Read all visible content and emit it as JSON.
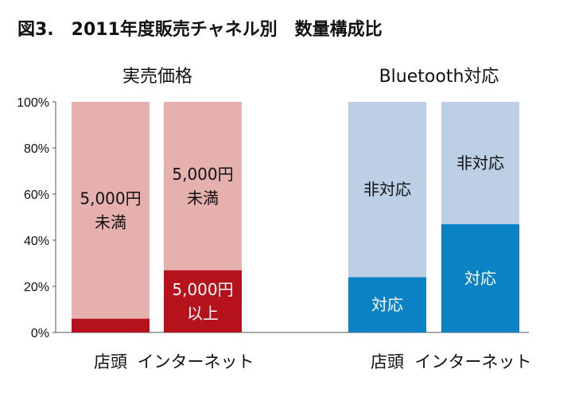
{
  "chart_data": {
    "type": "bar",
    "stacked": true,
    "title": "図3.　2011年度販売チャネル別　数量構成比",
    "ylim": [
      0,
      100
    ],
    "y_ticks": [
      "0%",
      "20%",
      "40%",
      "60%",
      "80%",
      "100%"
    ],
    "grid": false,
    "groups": [
      {
        "title": "実売価格",
        "categories": [
          "店頭",
          "インターネット"
        ],
        "series": [
          {
            "name": "5,000円以上",
            "label_lines": [
              "5,000円",
              "以上"
            ],
            "color": "#b5121b",
            "label_color": "#ffffff",
            "values": [
              6,
              27
            ]
          },
          {
            "name": "5,000円未満",
            "label_lines": [
              "5,000円",
              "未満"
            ],
            "color": "#e6b0ae",
            "label_color": "#111111",
            "values": [
              94,
              73
            ]
          }
        ],
        "visible_labels": {
          "5,000円以上": [
            false,
            true
          ],
          "5,000円未満": [
            true,
            true
          ]
        }
      },
      {
        "title": "Bluetooth対応",
        "categories": [
          "店頭",
          "インターネット"
        ],
        "series": [
          {
            "name": "対応",
            "label_lines": [
              "対応"
            ],
            "color": "#0a82c4",
            "label_color": "#ffffff",
            "values": [
              24,
              47
            ]
          },
          {
            "name": "非対応",
            "label_lines": [
              "非対応"
            ],
            "color": "#bccfe5",
            "label_color": "#111111",
            "values": [
              76,
              53
            ]
          }
        ],
        "visible_labels": {
          "対応": [
            true,
            true
          ],
          "非対応": [
            true,
            true
          ]
        }
      }
    ]
  }
}
